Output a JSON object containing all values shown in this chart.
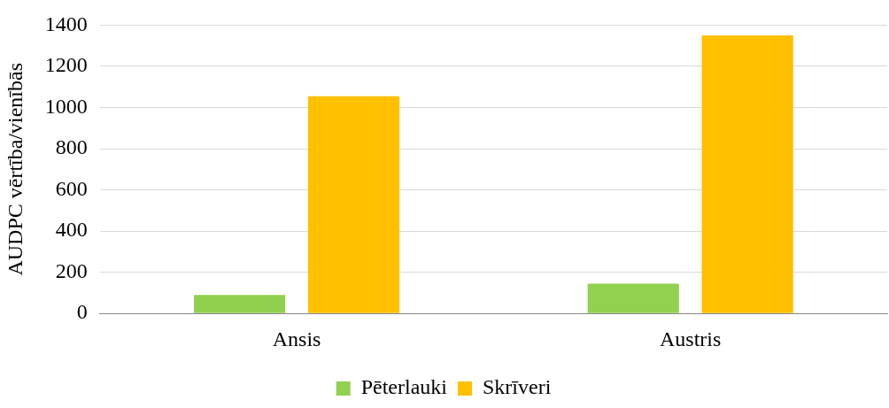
{
  "chart_data": {
    "type": "bar",
    "ylabel": "AUDPC vērtība/vienībās",
    "categories": [
      "Ansis",
      "Austris"
    ],
    "series": [
      {
        "name": "Pēterlauki",
        "color": "#92d050",
        "values": [
          90,
          145
        ]
      },
      {
        "name": "Skrīveri",
        "color": "#ffc000",
        "values": [
          1055,
          1350
        ]
      }
    ],
    "ylim": [
      0,
      1400
    ],
    "yticks": [
      0,
      200,
      400,
      600,
      800,
      1000,
      1200,
      1400
    ],
    "grid": "y",
    "legend": "bottom"
  }
}
